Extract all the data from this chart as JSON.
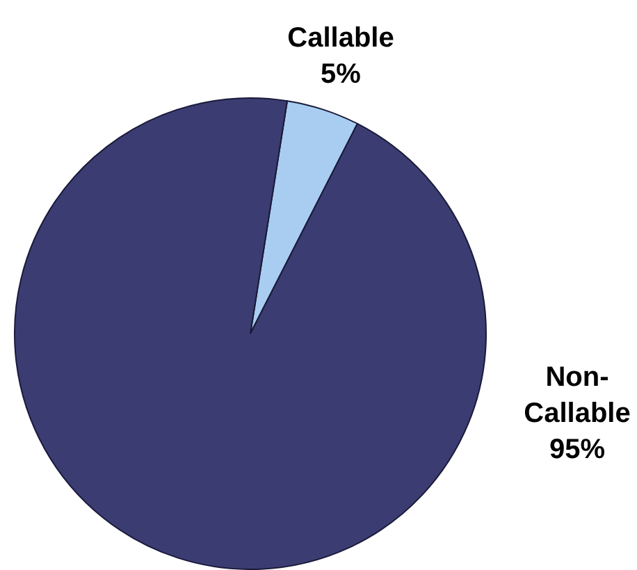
{
  "chart_data": {
    "type": "pie",
    "categories": [
      "Callable",
      "Non-Callable"
    ],
    "values": [
      5,
      95
    ],
    "colors": [
      "#a9cdf0",
      "#3b3d72"
    ],
    "value_labels": [
      "5%",
      "95%"
    ],
    "legend": false
  }
}
